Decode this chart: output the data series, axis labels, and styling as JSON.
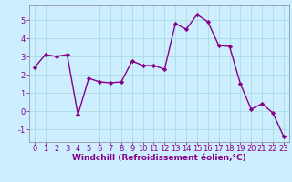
{
  "x": [
    0,
    1,
    2,
    3,
    4,
    5,
    6,
    7,
    8,
    9,
    10,
    11,
    12,
    13,
    14,
    15,
    16,
    17,
    18,
    19,
    20,
    21,
    22,
    23
  ],
  "y": [
    2.4,
    3.1,
    3.0,
    3.1,
    -0.2,
    1.8,
    1.6,
    1.55,
    1.6,
    2.75,
    2.5,
    2.5,
    2.3,
    4.8,
    4.5,
    5.3,
    4.9,
    3.6,
    3.55,
    1.5,
    0.1,
    0.4,
    -0.1,
    -1.4
  ],
  "line_color": "#880088",
  "marker": "D",
  "marker_size": 2.2,
  "linewidth": 1.0,
  "xlabel": "Windchill (Refroidissement éolien,°C)",
  "xlabel_fontsize": 6.5,
  "xlim": [
    -0.5,
    23.5
  ],
  "ylim": [
    -1.7,
    5.8
  ],
  "yticks": [
    -1,
    0,
    1,
    2,
    3,
    4,
    5
  ],
  "xticks": [
    0,
    1,
    2,
    3,
    4,
    5,
    6,
    7,
    8,
    9,
    10,
    11,
    12,
    13,
    14,
    15,
    16,
    17,
    18,
    19,
    20,
    21,
    22,
    23
  ],
  "background_color": "#cceeff",
  "grid_color": "#aadddd",
  "tick_fontsize": 6.0,
  "tick_color": "#880088",
  "label_color": "#880088",
  "spine_color": "#888888"
}
